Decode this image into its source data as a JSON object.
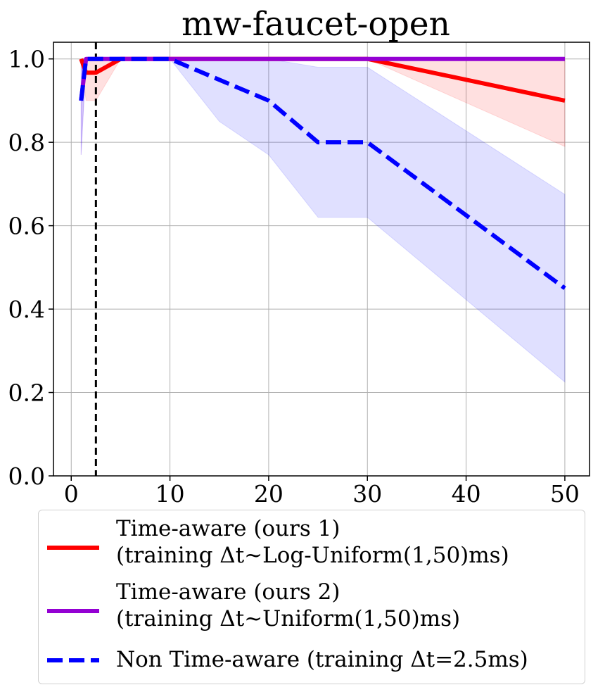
{
  "chart_data": {
    "type": "line",
    "title": "mw-faucet-open",
    "xlabel": "",
    "ylabel": "",
    "xlim": [
      -1.8,
      52.5
    ],
    "ylim": [
      0.0,
      1.04
    ],
    "xticks": [
      0,
      10,
      20,
      30,
      40,
      50
    ],
    "yticks": [
      0.0,
      0.2,
      0.4,
      0.6,
      0.8,
      1.0
    ],
    "xtick_labels": [
      "0",
      "10",
      "20",
      "30",
      "40",
      "50"
    ],
    "ytick_labels": [
      "0.0",
      "0.2",
      "0.4",
      "0.6",
      "0.8",
      "1.0"
    ],
    "grid": true,
    "vline": {
      "x": 2.5,
      "style": "dashed",
      "color": "#000000"
    },
    "legend_position": "bottom",
    "series": [
      {
        "name": "Time-aware (ours 1)",
        "label_line2": "(training Δt~Log-Uniform(1,50)ms)",
        "color": "#ff0000",
        "style": "solid",
        "x": [
          1,
          1.5,
          2.5,
          5,
          10,
          15,
          20,
          25,
          30,
          50
        ],
        "y": [
          1.0,
          0.967,
          0.967,
          1.0,
          1.0,
          1.0,
          1.0,
          1.0,
          1.0,
          0.9
        ],
        "band_low": [
          1.0,
          0.9,
          0.9,
          1.0,
          1.0,
          1.0,
          1.0,
          1.0,
          1.0,
          0.79
        ],
        "band_high": [
          1.0,
          1.0,
          1.0,
          1.0,
          1.0,
          1.0,
          1.0,
          1.0,
          1.0,
          1.0
        ]
      },
      {
        "name": "Time-aware (ours 2)",
        "label_line2": "(training Δt~Uniform(1,50)ms)",
        "color": "#9400d3",
        "style": "solid",
        "x": [
          1,
          1.5,
          2.5,
          5,
          10,
          15,
          20,
          25,
          30,
          50
        ],
        "y": [
          0.9,
          1.0,
          1.0,
          1.0,
          1.0,
          1.0,
          1.0,
          1.0,
          1.0,
          1.0
        ],
        "band_low": [
          0.77,
          1.0,
          1.0,
          1.0,
          1.0,
          1.0,
          1.0,
          1.0,
          1.0,
          1.0
        ],
        "band_high": [
          1.0,
          1.0,
          1.0,
          1.0,
          1.0,
          1.0,
          1.0,
          1.0,
          1.0,
          1.0
        ]
      },
      {
        "name": "Non Time-aware (training Δt=2.5ms)",
        "label_line2": "",
        "color": "#0000ff",
        "style": "dashed",
        "x": [
          1,
          1.5,
          2.5,
          5,
          10,
          15,
          20,
          25,
          30,
          50
        ],
        "y": [
          0.9,
          1.0,
          1.0,
          1.0,
          1.0,
          0.95,
          0.9,
          0.8,
          0.8,
          0.45
        ],
        "band_low": [
          0.77,
          1.0,
          1.0,
          1.0,
          1.0,
          0.85,
          0.77,
          0.62,
          0.62,
          0.225
        ],
        "band_high": [
          1.0,
          1.0,
          1.0,
          1.0,
          1.0,
          1.0,
          1.0,
          0.98,
          0.98,
          0.675
        ]
      }
    ]
  }
}
